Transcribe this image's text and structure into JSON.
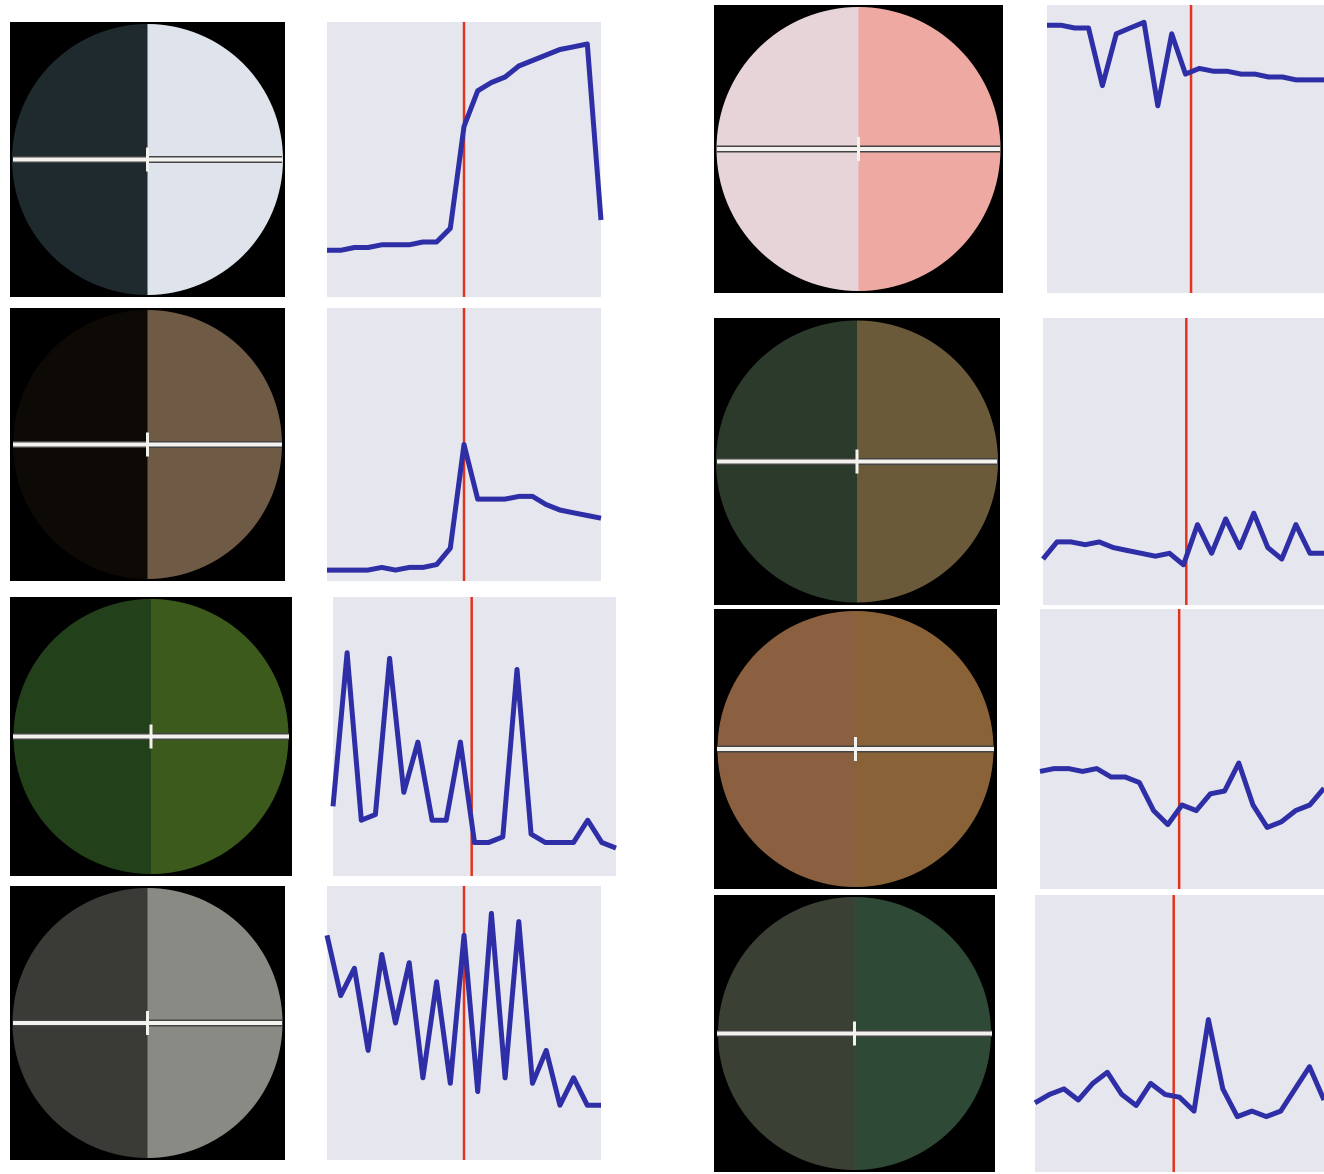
{
  "chart_data": [
    {
      "type": "line",
      "x": [
        0,
        5,
        10,
        15,
        20,
        25,
        30,
        35,
        40,
        45,
        50,
        55,
        60,
        65,
        70,
        75,
        80,
        85,
        90,
        95,
        100
      ],
      "values": [
        17,
        17,
        18,
        18,
        19,
        19,
        19,
        20,
        20,
        25,
        62,
        75,
        78,
        80,
        84,
        86,
        88,
        90,
        91,
        92,
        28
      ],
      "xlim": [
        0,
        100
      ],
      "ylim": [
        0,
        100
      ],
      "color": "#2e2ea6",
      "marker_x": 50,
      "marker_color": "#e2341d"
    },
    {
      "type": "line",
      "x": [
        0,
        5,
        10,
        15,
        20,
        25,
        30,
        35,
        40,
        45,
        50,
        55,
        60,
        65,
        70,
        75,
        80,
        85,
        90,
        95,
        100
      ],
      "values": [
        4,
        4,
        4,
        4,
        5,
        4,
        5,
        5,
        6,
        12,
        50,
        30,
        30,
        30,
        31,
        31,
        28,
        26,
        25,
        24,
        23
      ],
      "xlim": [
        0,
        100
      ],
      "ylim": [
        0,
        100
      ],
      "color": "#2e2ea6",
      "marker_x": 50,
      "marker_color": "#e2341d"
    },
    {
      "type": "line",
      "x": [
        0,
        5,
        10,
        15,
        20,
        25,
        30,
        35,
        40,
        45,
        50,
        55,
        60,
        65,
        70,
        75,
        80,
        85,
        90,
        95,
        100
      ],
      "values": [
        25,
        80,
        20,
        22,
        78,
        30,
        48,
        20,
        20,
        48,
        12,
        12,
        14,
        74,
        15,
        12,
        12,
        12,
        20,
        12,
        10
      ],
      "xlim": [
        0,
        100
      ],
      "ylim": [
        0,
        100
      ],
      "color": "#2e2ea6",
      "marker_x": 49,
      "marker_color": "#e2341d"
    },
    {
      "type": "line",
      "x": [
        0,
        5,
        10,
        15,
        20,
        25,
        30,
        35,
        40,
        45,
        50,
        55,
        60,
        65,
        70,
        75,
        80,
        85,
        90,
        95,
        100
      ],
      "values": [
        82,
        60,
        70,
        40,
        75,
        50,
        72,
        30,
        65,
        28,
        82,
        25,
        90,
        30,
        87,
        28,
        40,
        20,
        30,
        20,
        20
      ],
      "xlim": [
        0,
        100
      ],
      "ylim": [
        0,
        100
      ],
      "color": "#2e2ea6",
      "marker_x": 50,
      "marker_color": "#e2341d"
    },
    {
      "type": "line",
      "x": [
        0,
        5,
        10,
        15,
        20,
        25,
        30,
        35,
        40,
        45,
        50,
        55,
        60,
        65,
        70,
        75,
        80,
        85,
        90,
        95,
        100
      ],
      "values": [
        93,
        93,
        92,
        92,
        72,
        90,
        92,
        94,
        65,
        90,
        76,
        78,
        77,
        77,
        76,
        76,
        75,
        75,
        74,
        74,
        74
      ],
      "xlim": [
        0,
        100
      ],
      "ylim": [
        0,
        100
      ],
      "color": "#2e2ea6",
      "marker_x": 52,
      "marker_color": "#e2341d"
    },
    {
      "type": "line",
      "x": [
        0,
        5,
        10,
        15,
        20,
        25,
        30,
        35,
        40,
        45,
        50,
        55,
        60,
        65,
        70,
        75,
        80,
        85,
        90,
        95,
        100
      ],
      "values": [
        16,
        22,
        22,
        21,
        22,
        20,
        19,
        18,
        17,
        18,
        14,
        28,
        18,
        30,
        20,
        32,
        20,
        16,
        28,
        18,
        18
      ],
      "xlim": [
        0,
        100
      ],
      "ylim": [
        0,
        100
      ],
      "color": "#2e2ea6",
      "marker_x": 51,
      "marker_color": "#e2341d"
    },
    {
      "type": "line",
      "x": [
        0,
        5,
        10,
        15,
        20,
        25,
        30,
        35,
        40,
        45,
        50,
        55,
        60,
        65,
        70,
        75,
        80,
        85,
        90,
        95,
        100
      ],
      "values": [
        42,
        43,
        43,
        42,
        43,
        40,
        40,
        38,
        28,
        23,
        30,
        28,
        34,
        35,
        45,
        30,
        22,
        24,
        28,
        30,
        36
      ],
      "xlim": [
        0,
        100
      ],
      "ylim": [
        0,
        100
      ],
      "color": "#2e2ea6",
      "marker_x": 49,
      "marker_color": "#e2341d"
    },
    {
      "type": "line",
      "x": [
        0,
        5,
        10,
        15,
        20,
        25,
        30,
        35,
        40,
        45,
        50,
        55,
        60,
        65,
        70,
        75,
        80,
        85,
        90,
        95,
        100
      ],
      "values": [
        25,
        28,
        30,
        26,
        32,
        36,
        28,
        24,
        32,
        28,
        27,
        22,
        55,
        30,
        20,
        22,
        20,
        22,
        30,
        38,
        26
      ],
      "xlim": [
        0,
        100
      ],
      "ylim": [
        0,
        100
      ],
      "color": "#2e2ea6",
      "marker_x": 48,
      "marker_color": "#e2341d"
    }
  ]
}
